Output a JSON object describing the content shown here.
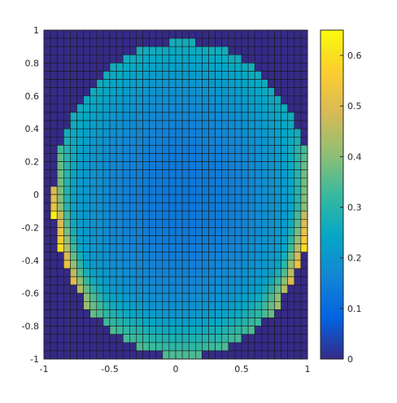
{
  "chart_data": {
    "type": "heatmap",
    "title": "",
    "xlabel": "",
    "ylabel": "",
    "xlim": [
      -1,
      1
    ],
    "ylim": [
      -1,
      1
    ],
    "grid_n": 40,
    "grid_lines": true,
    "x_ticks": [
      "-1",
      "-0.5",
      "0",
      "0.5",
      "1"
    ],
    "x_tick_values": [
      -1,
      -0.5,
      0,
      0.5,
      1
    ],
    "y_ticks": [
      "1",
      "0.8",
      "0.6",
      "0.4",
      "0.2",
      "0",
      "-0.2",
      "-0.4",
      "-0.6",
      "-0.8",
      "-1"
    ],
    "y_tick_values": [
      1,
      0.8,
      0.6,
      0.4,
      0.2,
      0,
      -0.2,
      -0.4,
      -0.6,
      -0.8,
      -1
    ],
    "color_scale": {
      "min": 0,
      "max": 0.65,
      "colormap": "parula",
      "ticks": [
        "0.6",
        "0.5",
        "0.4",
        "0.3",
        "0.2",
        "0.1",
        "0"
      ],
      "tick_values": [
        0.6,
        0.5,
        0.4,
        0.3,
        0.2,
        0.1,
        0
      ]
    },
    "field": {
      "shape": "ellipse",
      "center": [
        0.05,
        -0.03
      ],
      "semi_axes": [
        0.98,
        0.96
      ],
      "outside_value": 0.0,
      "center_value": 0.13,
      "rim_value": 0.27,
      "hotspot_value": 0.64,
      "hotspot_y_range": [
        -0.75,
        0.35
      ]
    },
    "colors": {
      "parula": [
        "#352a87",
        "#0363e1",
        "#1485d4",
        "#06a7c6",
        "#38b99e",
        "#92bf73",
        "#d9ba56",
        "#fcce2e",
        "#f9fb0e"
      ],
      "grid_line": "#1a1a1a",
      "axis": "#262626"
    }
  }
}
